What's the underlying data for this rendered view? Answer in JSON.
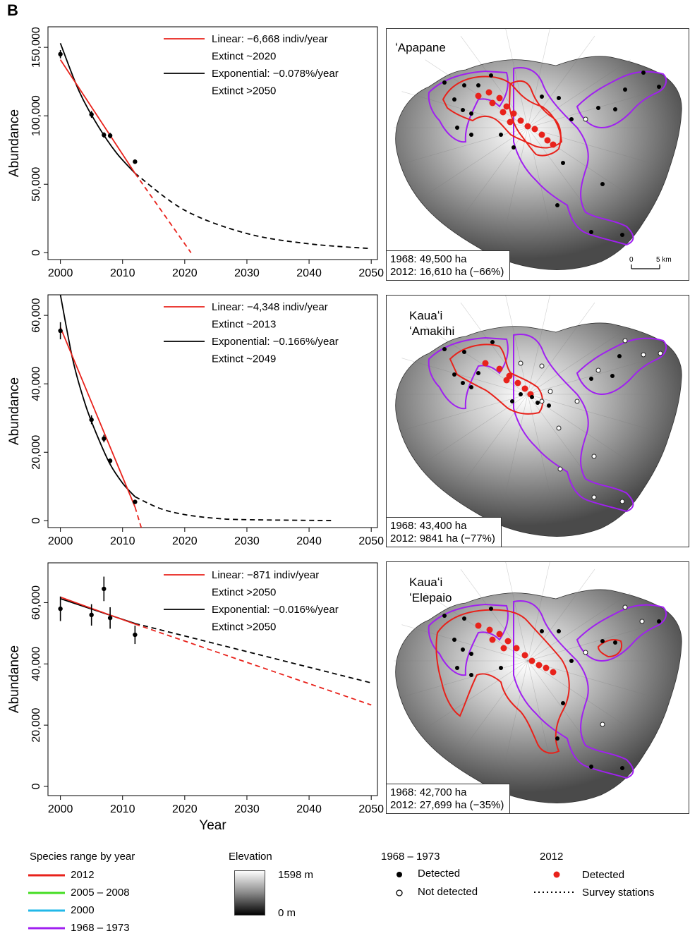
{
  "panel_letter": "B",
  "chart_data": [
    {
      "type": "line",
      "species": "ʻApapane",
      "ylabel": "Abundance",
      "xlabel": "",
      "xlim": [
        1998,
        2051
      ],
      "ylim": [
        -5000,
        165000
      ],
      "xticks": [
        "2000",
        "2010",
        "2020",
        "2030",
        "2040",
        "2050"
      ],
      "yticks": [
        {
          "v": 0,
          "label": "0"
        },
        {
          "v": 50000,
          "label": "50,000"
        },
        {
          "v": 100000,
          "label": "100,000"
        },
        {
          "v": 150000,
          "label": "150,000"
        }
      ],
      "points": [
        {
          "x": 2000,
          "y": 145000,
          "err": 3000
        },
        {
          "x": 2005,
          "y": 101000,
          "err": 2500
        },
        {
          "x": 2007,
          "y": 86000,
          "err": 2000
        },
        {
          "x": 2008,
          "y": 85500,
          "err": 2000
        },
        {
          "x": 2012,
          "y": 66500,
          "err": 1500
        }
      ],
      "linear_fit": {
        "x": [
          2000,
          2012
        ],
        "y": [
          141000,
          58000
        ]
      },
      "linear_projection": {
        "x": [
          2012,
          2021
        ],
        "y": [
          58000,
          0
        ]
      },
      "exp_fit": {
        "x": [
          2000,
          2003,
          2006,
          2009,
          2012
        ],
        "y": [
          153000,
          118000,
          93000,
          73000,
          58000
        ]
      },
      "exp_projection": {
        "x": [
          2012,
          2020,
          2030,
          2040,
          2050
        ],
        "y": [
          58000,
          31000,
          14000,
          6500,
          3000
        ]
      },
      "legend": [
        {
          "label": "Linear: −6,668 indiv/year",
          "color": "#e8221b"
        },
        {
          "label": "Extinct ~2020",
          "color": ""
        },
        {
          "label": "Exponential: −0.078%/year",
          "color": "#000000"
        },
        {
          "label": "Extinct >2050",
          "color": ""
        }
      ]
    },
    {
      "type": "line",
      "species": "Kauaʻi ʻAmakihi",
      "ylabel": "Abundance",
      "xlabel": "",
      "xlim": [
        1998,
        2051
      ],
      "ylim": [
        -2000,
        66000
      ],
      "xticks": [
        "2000",
        "2010",
        "2020",
        "2030",
        "2040",
        "2050"
      ],
      "yticks": [
        {
          "v": 0,
          "label": "0"
        },
        {
          "v": 20000,
          "label": "20,000"
        },
        {
          "v": 40000,
          "label": "40,000"
        },
        {
          "v": 60000,
          "label": "60,000"
        }
      ],
      "points": [
        {
          "x": 2000,
          "y": 55500,
          "err": 2500
        },
        {
          "x": 2005,
          "y": 29500,
          "err": 1300
        },
        {
          "x": 2007,
          "y": 24000,
          "err": 1100
        },
        {
          "x": 2008,
          "y": 17500,
          "err": 700
        },
        {
          "x": 2012,
          "y": 5500,
          "err": 400
        }
      ],
      "linear_fit": {
        "x": [
          2000,
          2012
        ],
        "y": [
          56500,
          4000
        ]
      },
      "linear_projection": {
        "x": [
          2012,
          2013
        ],
        "y": [
          4000,
          -2000
        ]
      },
      "exp_fit": {
        "x": [
          2000,
          2002,
          2004,
          2006,
          2008,
          2010,
          2012
        ],
        "y": [
          66000,
          47000,
          34000,
          24500,
          16500,
          11000,
          7000
        ]
      },
      "exp_projection": {
        "x": [
          2012,
          2016,
          2020,
          2025,
          2030,
          2044
        ],
        "y": [
          7000,
          3600,
          1800,
          700,
          300,
          50
        ]
      },
      "legend": [
        {
          "label": "Linear: −4,348 indiv/year",
          "color": "#e8221b"
        },
        {
          "label": "Extinct ~2013",
          "color": ""
        },
        {
          "label": "Exponential: −0.166%/year",
          "color": "#000000"
        },
        {
          "label": "Extinct ~2049",
          "color": ""
        }
      ]
    },
    {
      "type": "line",
      "species": "Kauaʻi ʻElepaio",
      "ylabel": "Abundance",
      "xlabel": "Year",
      "xlim": [
        1998,
        2051
      ],
      "ylim": [
        -3000,
        73000
      ],
      "xticks": [
        "2000",
        "2010",
        "2020",
        "2030",
        "2040",
        "2050"
      ],
      "yticks": [
        {
          "v": 0,
          "label": "0"
        },
        {
          "v": 20000,
          "label": "20,000"
        },
        {
          "v": 40000,
          "label": "40,000"
        },
        {
          "v": 60000,
          "label": "60,000"
        }
      ],
      "points": [
        {
          "x": 2000,
          "y": 58000,
          "err": 4000
        },
        {
          "x": 2005,
          "y": 56000,
          "err": 3500
        },
        {
          "x": 2007,
          "y": 64500,
          "err": 4000
        },
        {
          "x": 2008,
          "y": 55000,
          "err": 3500
        },
        {
          "x": 2012,
          "y": 49500,
          "err": 3000
        }
      ],
      "linear_fit": {
        "x": [
          2000,
          2012
        ],
        "y": [
          61800,
          53000
        ]
      },
      "linear_projection": {
        "x": [
          2012,
          2050
        ],
        "y": [
          53000,
          26600
        ]
      },
      "exp_fit": {
        "x": [
          2000,
          2012
        ],
        "y": [
          61300,
          53200
        ]
      },
      "exp_projection": {
        "x": [
          2012,
          2050
        ],
        "y": [
          53200,
          33800
        ]
      },
      "legend": [
        {
          "label": "Linear: −871 indiv/year",
          "color": "#e8221b"
        },
        {
          "label": "Extinct >2050",
          "color": ""
        },
        {
          "label": "Exponential: −0.016%/year",
          "color": "#000000"
        },
        {
          "label": "Extinct >2050",
          "color": ""
        }
      ]
    }
  ],
  "maps": [
    {
      "species": "ʻApapane",
      "area_1968": "1968: 49,500 ha",
      "area_2012": "2012: 16,610 ha (−66%)"
    },
    {
      "species_line1": "Kauaʻi",
      "species_line2": "ʻAmakihi",
      "area_1968": "1968: 43,400 ha",
      "area_2012": "2012: 9841 ha (−77%)"
    },
    {
      "species_line1": "Kauaʻi",
      "species_line2": "ʻElepaio",
      "area_1968": "1968: 42,700 ha",
      "area_2012": "2012: 27,699 ha (−35%)"
    }
  ],
  "scale_bar": {
    "start": "0",
    "end": "5 km"
  },
  "legend": {
    "range": {
      "title": "Species range by year",
      "items": [
        {
          "label": "2012",
          "color": "#e8221b"
        },
        {
          "label": "2005 – 2008",
          "color": "#44dd22"
        },
        {
          "label": "2000",
          "color": "#22b8e8"
        },
        {
          "label": "1968 – 1973",
          "color": "#a020f0"
        }
      ]
    },
    "elevation": {
      "title": "Elevation",
      "max": "1598 m",
      "min": "0 m"
    },
    "survey_1968": {
      "title": "1968 – 1973",
      "detected": "Detected",
      "not_detected": "Not detected"
    },
    "survey_2012": {
      "title": "2012",
      "detected": "Detected",
      "stations": "Survey stations"
    }
  }
}
